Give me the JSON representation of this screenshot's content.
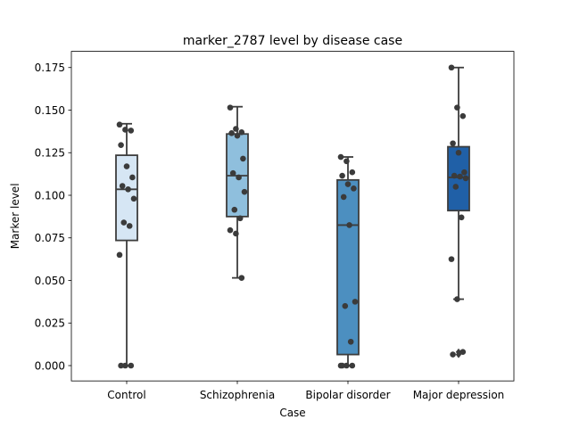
{
  "chart_data": {
    "type": "box",
    "title": "marker_2787 level by disease case",
    "xlabel": "Case",
    "ylabel": "Marker level",
    "ylim": [
      -0.009,
      0.1845
    ],
    "yticks": [
      "0.000",
      "0.025",
      "0.050",
      "0.075",
      "0.100",
      "0.125",
      "0.150",
      "0.175"
    ],
    "grid": false,
    "legend": "none",
    "categories": [
      "Control",
      "Schizophrenia",
      "Bipolar disorder",
      "Major depression"
    ],
    "colors": [
      "#d6e6f4",
      "#8fbfdd",
      "#4c8fc0",
      "#2060a7"
    ],
    "boxes": [
      {
        "category": "Control",
        "whisker_low": 0.0,
        "q1": 0.0735,
        "median": 0.1035,
        "q3": 0.1235,
        "whisker_high": 0.142,
        "outliers": []
      },
      {
        "category": "Schizophrenia",
        "whisker_low": 0.0515,
        "q1": 0.0875,
        "median": 0.1115,
        "q3": 0.136,
        "whisker_high": 0.152,
        "outliers": []
      },
      {
        "category": "Bipolar disorder",
        "whisker_low": 0.0,
        "q1": 0.0065,
        "median": 0.0825,
        "q3": 0.109,
        "whisker_high": 0.1225,
        "outliers": []
      },
      {
        "category": "Major depression",
        "whisker_low": 0.039,
        "q1": 0.091,
        "median": 0.1105,
        "q3": 0.1285,
        "whisker_high": 0.175,
        "outliers": [
          0.008,
          0.0065
        ]
      }
    ],
    "points": [
      {
        "category": "Control",
        "values": [
          0.1415,
          0.1385,
          0.138,
          0.1295,
          0.117,
          0.1105,
          0.1055,
          0.1035,
          0.098,
          0.084,
          0.082,
          0.065,
          0.0,
          0.0,
          0.0
        ]
      },
      {
        "category": "Schizophrenia",
        "values": [
          0.1515,
          0.139,
          0.137,
          0.1365,
          0.135,
          0.1215,
          0.113,
          0.1105,
          0.102,
          0.0915,
          0.0865,
          0.0795,
          0.0775,
          0.0515
        ]
      },
      {
        "category": "Bipolar disorder",
        "values": [
          0.1225,
          0.12,
          0.1135,
          0.1115,
          0.1065,
          0.104,
          0.099,
          0.0825,
          0.0375,
          0.035,
          0.014,
          0.0,
          0.0,
          0.0,
          0.0
        ]
      },
      {
        "category": "Major depression",
        "values": [
          0.175,
          0.1515,
          0.1465,
          0.1305,
          0.125,
          0.1135,
          0.1115,
          0.111,
          0.11,
          0.105,
          0.087,
          0.0625,
          0.039,
          0.008,
          0.0065
        ]
      }
    ]
  }
}
